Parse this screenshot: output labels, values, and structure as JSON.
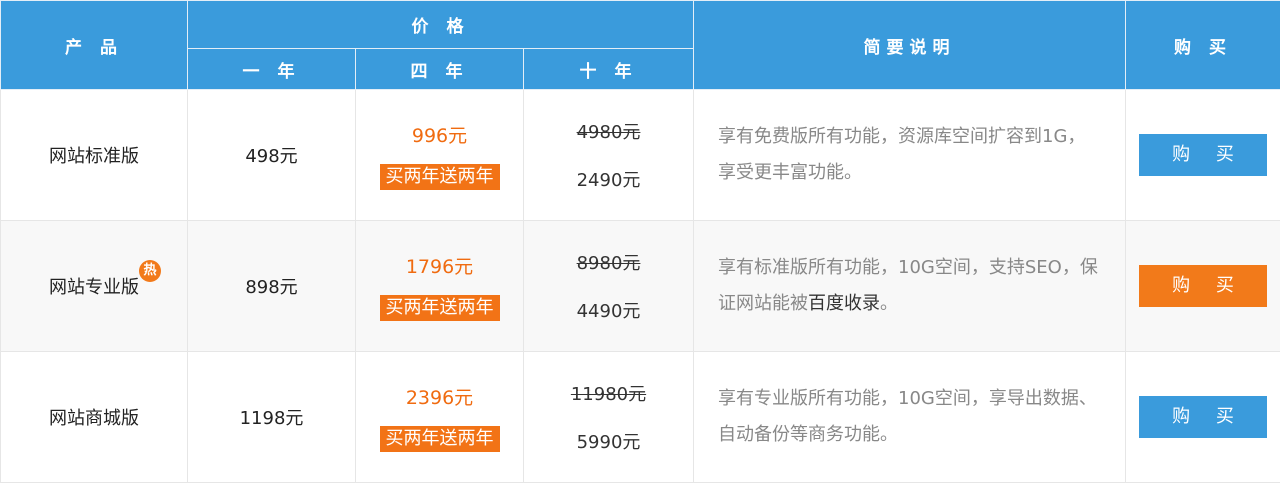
{
  "header": {
    "product": "产 品",
    "price": "价 格",
    "year1": "一 年",
    "year4": "四 年",
    "year10": "十 年",
    "description": "简要说明",
    "buy": "购 买"
  },
  "rows": [
    {
      "name": "网站标准版",
      "hot": "",
      "price1": "498元",
      "price4": "996元",
      "promo": "买两年送两年",
      "price10_original": "4980元",
      "price10": "2490元",
      "desc_a": "享有免费版所有功能，资源库空间扩容到1G，享受更丰富功能。",
      "desc_b": "",
      "desc_c": "",
      "buy_label": "购 买",
      "button_color": "#3a9bdc"
    },
    {
      "name": "网站专业版",
      "hot": "热",
      "price1": "898元",
      "price4": "1796元",
      "promo": "买两年送两年",
      "price10_original": "8980元",
      "price10": "4490元",
      "desc_a": "享有标准版所有功能，10G空间，支持SEO，保证网站能被",
      "desc_b": "百度收录",
      "desc_c": "。",
      "buy_label": "购 买",
      "button_color": "#f27a1a"
    },
    {
      "name": "网站商城版",
      "hot": "",
      "price1": "1198元",
      "price4": "2396元",
      "promo": "买两年送两年",
      "price10_original": "11980元",
      "price10": "5990元",
      "desc_a": "享有专业版所有功能，10G空间，享导出数据、自动备份等商务功能。",
      "desc_b": "",
      "desc_c": "",
      "buy_label": "购 买",
      "button_color": "#3a9bdc"
    }
  ],
  "colors": {
    "header_bg": "#3a9bdc",
    "accent_orange": "#f27a1a",
    "price_orange": "#f06b10"
  }
}
